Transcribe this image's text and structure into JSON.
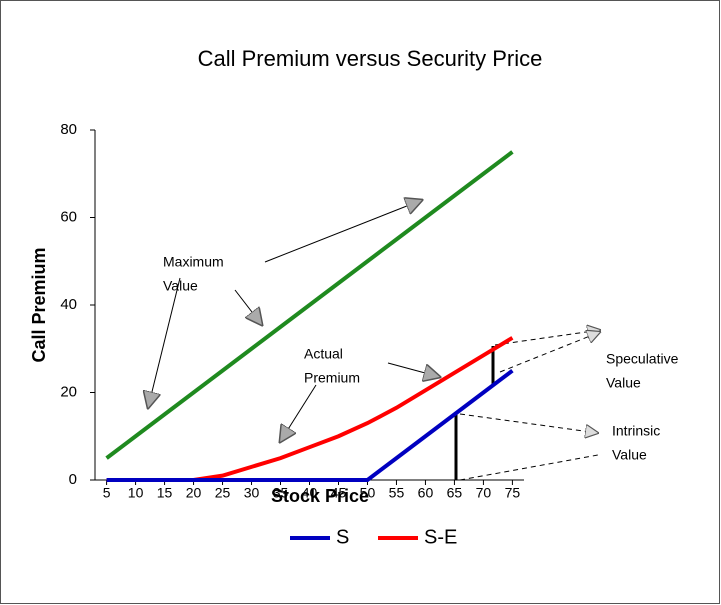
{
  "chart_data": {
    "type": "line",
    "title": "Call Premium versus Security Price",
    "xlabel": "Stock Price",
    "ylabel": "Call Premium",
    "x": [
      5,
      10,
      15,
      20,
      25,
      30,
      35,
      40,
      45,
      50,
      55,
      60,
      65,
      70,
      75
    ],
    "series": [
      {
        "color": "#1f8a1f",
        "values": [
          5,
          10,
          15,
          20,
          25,
          30,
          35,
          40,
          45,
          50,
          55,
          60,
          65,
          70,
          75
        ]
      },
      {
        "name": "S-E",
        "color": "#ff0000",
        "values": [
          0,
          0,
          0,
          0,
          1,
          3,
          5,
          7.5,
          10,
          13,
          16.5,
          20.5,
          24.5,
          28.5,
          32.5
        ]
      },
      {
        "name": "S",
        "color": "#0000c0",
        "values": [
          0,
          0,
          0,
          0,
          0,
          0,
          0,
          0,
          0,
          0,
          5,
          10,
          15,
          20,
          25
        ]
      }
    ],
    "legend_order": [
      2,
      1
    ],
    "xlim": [
      3,
      77
    ],
    "ylim": [
      0,
      80
    ],
    "xticks": [
      5,
      10,
      15,
      20,
      25,
      30,
      35,
      40,
      45,
      50,
      55,
      60,
      65,
      70,
      75
    ],
    "yticks": [
      0,
      20,
      40,
      60,
      80
    ],
    "grid": false,
    "annotations": [
      {
        "lines": [
          "Maximum",
          "Value"
        ]
      },
      {
        "lines": [
          "Actual",
          "Premium"
        ]
      },
      {
        "lines": [
          "Speculative",
          "Value"
        ]
      },
      {
        "lines": [
          "Intrinsic",
          "Value"
        ]
      }
    ]
  }
}
